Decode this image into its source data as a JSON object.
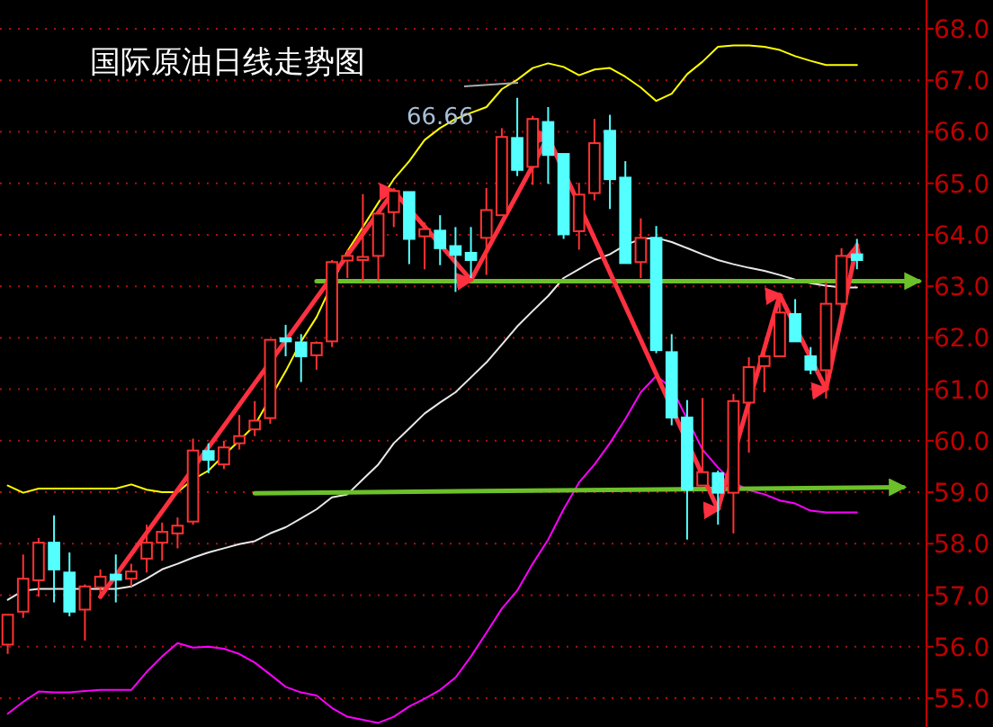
{
  "chart_data": {
    "type": "candlestick",
    "title": "国际原油日线走势图",
    "categories": [
      null,
      null,
      null,
      null,
      null,
      null,
      null,
      null,
      null,
      null,
      null,
      null,
      null,
      null,
      null,
      null,
      null,
      null,
      null,
      null,
      null,
      null,
      null,
      null,
      null,
      null,
      null,
      null,
      null,
      null,
      null,
      null,
      null,
      null,
      null,
      null,
      null,
      null,
      null,
      null,
      null,
      null,
      null,
      null,
      null,
      null,
      null,
      null,
      null,
      null,
      null,
      null,
      null,
      null,
      null,
      null,
      null,
      null,
      null,
      null
    ],
    "ohlc": [
      [
        56.04,
        56.62,
        55.86,
        56.62
      ],
      [
        56.68,
        57.79,
        56.56,
        57.32
      ],
      [
        57.29,
        58.11,
        56.97,
        58.02
      ],
      [
        58.02,
        58.55,
        56.86,
        57.5
      ],
      [
        57.44,
        57.83,
        56.59,
        56.68
      ],
      [
        56.72,
        57.21,
        56.12,
        57.17
      ],
      [
        57.15,
        57.5,
        56.97,
        57.36
      ],
      [
        57.4,
        57.79,
        56.86,
        57.3
      ],
      [
        57.32,
        57.61,
        57.17,
        57.46
      ],
      [
        57.71,
        58.37,
        57.44,
        58.02
      ],
      [
        58.02,
        58.41,
        57.67,
        58.23
      ],
      [
        58.2,
        58.51,
        57.91,
        58.35
      ],
      [
        58.43,
        60.04,
        58.37,
        59.81
      ],
      [
        59.8,
        59.95,
        59.37,
        59.63
      ],
      [
        59.54,
        60.0,
        59.45,
        59.87
      ],
      [
        59.95,
        60.5,
        59.83,
        60.09
      ],
      [
        60.22,
        60.77,
        60.09,
        60.39
      ],
      [
        60.44,
        61.96,
        60.33,
        61.96
      ],
      [
        61.99,
        62.25,
        61.64,
        61.93
      ],
      [
        61.91,
        62.07,
        61.14,
        61.64
      ],
      [
        61.66,
        61.93,
        61.38,
        61.9
      ],
      [
        61.93,
        63.51,
        61.82,
        63.47
      ],
      [
        63.5,
        63.71,
        63.16,
        63.59
      ],
      [
        63.51,
        64.79,
        63.1,
        63.57
      ],
      [
        63.59,
        64.41,
        63.1,
        64.41
      ],
      [
        64.44,
        64.91,
        64.15,
        64.85
      ],
      [
        64.83,
        64.83,
        63.43,
        63.92
      ],
      [
        63.97,
        64.24,
        63.33,
        64.11
      ],
      [
        64.08,
        64.38,
        63.41,
        63.74
      ],
      [
        63.78,
        64.15,
        62.89,
        63.61
      ],
      [
        63.65,
        64.15,
        63.16,
        63.51
      ],
      [
        63.94,
        64.91,
        63.22,
        64.48
      ],
      [
        64.38,
        66.07,
        64.38,
        65.9
      ],
      [
        65.88,
        66.66,
        65.14,
        65.26
      ],
      [
        65.32,
        66.31,
        64.97,
        66.25
      ],
      [
        66.19,
        66.48,
        64.99,
        65.55
      ],
      [
        65.57,
        65.57,
        63.92,
        64.01
      ],
      [
        64.07,
        65.01,
        63.71,
        64.78
      ],
      [
        64.81,
        66.25,
        64.67,
        65.78
      ],
      [
        66.02,
        66.33,
        64.5,
        65.08
      ],
      [
        65.11,
        65.43,
        63.45,
        63.45
      ],
      [
        63.47,
        64.32,
        63.16,
        63.94
      ],
      [
        63.94,
        64.17,
        61.7,
        61.76
      ],
      [
        61.72,
        62.07,
        60.3,
        60.45
      ],
      [
        60.45,
        60.79,
        58.08,
        59.05
      ],
      [
        59.13,
        60.83,
        59.13,
        59.39
      ],
      [
        59.37,
        59.42,
        58.37,
        58.99
      ],
      [
        58.99,
        60.91,
        58.2,
        60.77
      ],
      [
        60.74,
        61.62,
        59.77,
        61.43
      ],
      [
        61.45,
        61.87,
        60.94,
        61.64
      ],
      [
        61.64,
        62.87,
        61.64,
        62.49
      ],
      [
        62.46,
        62.75,
        61.93,
        61.93
      ],
      [
        61.64,
        61.82,
        61.29,
        61.38
      ],
      [
        61.37,
        63.08,
        60.82,
        62.66
      ],
      [
        62.66,
        63.74,
        62.4,
        63.59
      ],
      [
        63.62,
        63.92,
        63.33,
        63.51
      ],
      null,
      null,
      null,
      null
    ],
    "colors": [
      "#ff3232",
      "#ff3232",
      "#ff3232",
      "#54ffff",
      "#54ffff",
      "#ff3232",
      "#ff3232",
      "#54ffff",
      "#ff3232",
      "#ff3232",
      "#ff3232",
      "#ff3232",
      "#ff3232",
      "#54ffff",
      "#ff3232",
      "#ff3232",
      "#ff3232",
      "#ff3232",
      "#54ffff",
      "#54ffff",
      "#ff3232",
      "#ff3232",
      "#ff3232",
      "#ff3232",
      "#ff3232",
      "#ff3232",
      "#54ffff",
      "#ff3232",
      "#54ffff",
      "#54ffff",
      "#54ffff",
      "#ff3232",
      "#ff3232",
      "#54ffff",
      "#ff3232",
      "#54ffff",
      "#54ffff",
      "#ff3232",
      "#ff3232",
      "#54ffff",
      "#54ffff",
      "#ff3232",
      "#54ffff",
      "#54ffff",
      "#54ffff",
      "#ff3232",
      "#54ffff",
      "#ff3232",
      "#ff3232",
      "#ff3232",
      "#ff3232",
      "#54ffff",
      "#54ffff",
      "#ff3232",
      "#ff3232",
      "#54ffff",
      null,
      null,
      null,
      null
    ],
    "series": [
      {
        "type": "line",
        "color": "#ffff00",
        "values": [
          59.13,
          58.99,
          59.07,
          59.07,
          59.07,
          59.07,
          59.07,
          59.07,
          59.15,
          59.05,
          59.0,
          59.0,
          59.25,
          59.42,
          59.72,
          60.0,
          60.3,
          null,
          61.35,
          61.93,
          62.4,
          null,
          63.68,
          64.15,
          64.62,
          65.08,
          65.43,
          65.84,
          66.07,
          66.25,
          66.37,
          66.48,
          66.83,
          67.01,
          67.24,
          67.33,
          67.26,
          67.1,
          67.21,
          67.24,
          67.07,
          66.86,
          66.6,
          66.74,
          67.12,
          67.36,
          67.65,
          67.68,
          67.68,
          67.65,
          67.59,
          67.47,
          67.38,
          67.3,
          67.3,
          67.3,
          null,
          null,
          null,
          null
        ]
      },
      {
        "type": "line",
        "color": "#e8e8e8",
        "values": [
          56.91,
          57.09,
          57.12,
          57.12,
          57.12,
          57.12,
          57.12,
          57.12,
          57.17,
          57.32,
          57.5,
          57.61,
          57.73,
          57.83,
          57.91,
          57.99,
          58.05,
          58.2,
          58.32,
          58.49,
          58.67,
          58.9,
          58.96,
          59.25,
          59.54,
          59.95,
          60.24,
          60.53,
          60.74,
          60.94,
          61.23,
          61.52,
          61.87,
          62.22,
          62.52,
          62.81,
          63.16,
          63.33,
          63.51,
          63.62,
          63.8,
          63.92,
          63.94,
          63.86,
          63.74,
          63.62,
          63.51,
          63.43,
          63.36,
          63.3,
          63.22,
          63.13,
          63.06,
          63.01,
          62.98,
          62.98,
          null,
          null,
          null,
          null
        ]
      },
      {
        "type": "line",
        "color": "#ff00ff",
        "values": [
          54.7,
          54.93,
          55.13,
          55.11,
          55.11,
          55.14,
          55.16,
          55.16,
          55.16,
          55.51,
          55.81,
          56.07,
          55.98,
          56.0,
          55.96,
          55.86,
          55.69,
          55.46,
          55.22,
          55.11,
          55.05,
          54.81,
          54.64,
          54.58,
          54.52,
          54.64,
          54.84,
          54.99,
          55.16,
          55.4,
          55.81,
          56.27,
          56.74,
          57.09,
          57.61,
          58.08,
          58.67,
          59.19,
          59.54,
          59.95,
          60.42,
          60.94,
          61.26,
          61.02,
          60.42,
          59.83,
          59.48,
          59.19,
          59.04,
          58.96,
          58.84,
          58.78,
          58.64,
          58.61,
          58.61,
          58.61,
          null,
          null,
          null,
          null
        ]
      },
      {
        "type": "line",
        "color": "#6cc02a",
        "values": [
          null,
          null,
          null,
          null,
          null,
          null,
          null,
          null,
          null,
          null,
          null,
          null,
          null,
          null,
          null,
          null,
          null,
          null,
          null,
          null,
          63.1,
          null,
          null,
          null,
          null,
          null,
          null,
          null,
          null,
          null,
          null,
          null,
          null,
          null,
          null,
          null,
          null,
          null,
          null,
          null,
          null,
          null,
          null,
          null,
          null,
          null,
          null,
          null,
          null,
          null,
          null,
          null,
          null,
          null,
          null,
          null,
          null,
          null,
          null,
          63.1
        ]
      },
      {
        "type": "line",
        "color": "#6cc02a",
        "values": [
          null,
          null,
          null,
          null,
          null,
          null,
          null,
          null,
          null,
          null,
          null,
          null,
          null,
          null,
          null,
          null,
          58.98,
          null,
          null,
          null,
          null,
          null,
          null,
          null,
          null,
          null,
          null,
          null,
          null,
          null,
          null,
          null,
          null,
          null,
          null,
          null,
          null,
          null,
          null,
          null,
          null,
          null,
          null,
          null,
          null,
          null,
          null,
          null,
          null,
          null,
          null,
          null,
          null,
          null,
          null,
          null,
          null,
          null,
          59.1,
          null
        ]
      },
      {
        "type": "line",
        "color": "#ff3040",
        "values": [
          null,
          null,
          null,
          null,
          null,
          null,
          56.97,
          null,
          null,
          null,
          null,
          null,
          null,
          null,
          null,
          null,
          null,
          null,
          null,
          null,
          null,
          null,
          null,
          null,
          null,
          64.85,
          null,
          null,
          null,
          null,
          63.12,
          null,
          null,
          null,
          null,
          65.9,
          null,
          null,
          null,
          null,
          null,
          null,
          null,
          null,
          null,
          null,
          58.67,
          null,
          null,
          null,
          62.83,
          null,
          null,
          61.0,
          null,
          63.8,
          null,
          null,
          null,
          null
        ]
      }
    ],
    "annotations": [
      "66.66"
    ],
    "ylim": [
      54.44,
      68.56
    ],
    "yticks": [
      {
        "value": 55,
        "label": "55.0"
      },
      {
        "value": 56,
        "label": "56.0"
      },
      {
        "value": 57,
        "label": "57.0"
      },
      {
        "value": 58,
        "label": "58.0"
      },
      {
        "value": 59,
        "label": "59.0"
      },
      {
        "value": 60,
        "label": "60.0"
      },
      {
        "value": 61,
        "label": "61.0"
      },
      {
        "value": 62,
        "label": "62.0"
      },
      {
        "value": 63,
        "label": "63.0"
      },
      {
        "value": 64,
        "label": "64.0"
      },
      {
        "value": 65,
        "label": "65.0"
      },
      {
        "value": 66,
        "label": "66.0"
      },
      {
        "value": 67,
        "label": "67.0"
      },
      {
        "value": 68,
        "label": "68.0"
      }
    ],
    "grid": "y"
  }
}
